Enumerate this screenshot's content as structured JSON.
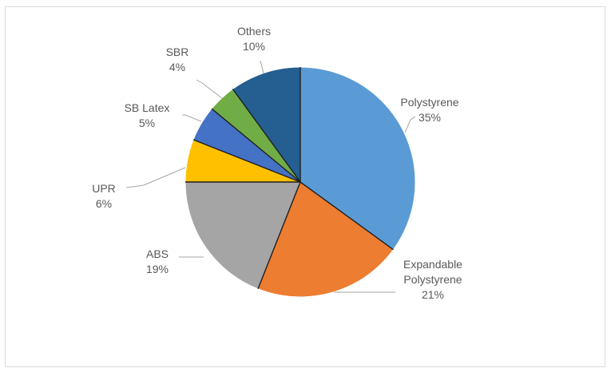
{
  "chart_data": {
    "type": "pie",
    "title": "",
    "start_angle_deg": 0,
    "direction": "clockwise",
    "slices": [
      {
        "label": "Polystyrene",
        "value": 35,
        "display": "35%",
        "color": "#5b9bd5"
      },
      {
        "label": "Expandable Polystyrene",
        "value": 21,
        "display": "21%",
        "color": "#ed7d31"
      },
      {
        "label": "ABS",
        "value": 19,
        "display": "19%",
        "color": "#a5a5a5"
      },
      {
        "label": "UPR",
        "value": 6,
        "display": "6%",
        "color": "#ffc000"
      },
      {
        "label": "SB Latex",
        "value": 5,
        "display": "5%",
        "color": "#4472c4"
      },
      {
        "label": "SBR",
        "value": 4,
        "display": "4%",
        "color": "#70ad47"
      },
      {
        "label": "Others",
        "value": 10,
        "display": "10%",
        "color": "#255e91"
      }
    ],
    "legend": "none",
    "data_labels": "outside-with-leader-lines"
  }
}
